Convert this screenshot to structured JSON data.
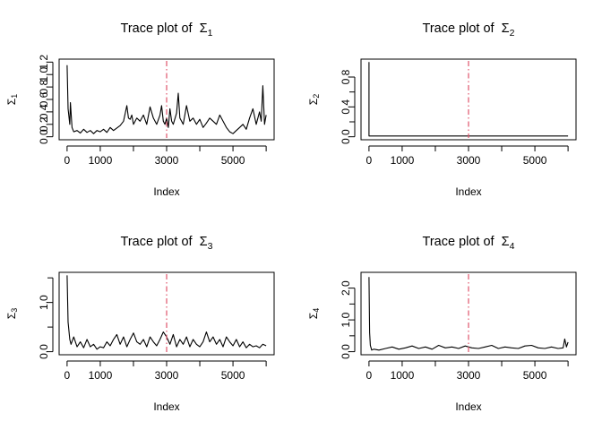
{
  "chart_data": [
    {
      "type": "line",
      "title_prefix": "Trace plot of",
      "title_symbol": "Σ",
      "title_subscript": "1",
      "xlabel": "Index",
      "ylabel_symbol": "Σ",
      "ylabel_subscript": "1",
      "xlim": [
        0,
        6000
      ],
      "ylim": [
        0,
        1.2
      ],
      "xticks": [
        0,
        1000,
        2000,
        3000,
        4000,
        5000,
        6000
      ],
      "xtick_labels": [
        "0",
        "1000",
        "",
        "3000",
        "",
        "5000",
        ""
      ],
      "yticks": [
        0,
        0.2,
        0.4,
        0.6,
        0.8,
        1.0,
        1.2
      ],
      "ytick_labels": [
        "0.0",
        "0.2",
        "0.4",
        "0.6",
        "0.8",
        "1.0",
        "1.2"
      ],
      "vline": 3000,
      "series": [
        {
          "x": [
            0,
            30,
            80,
            100,
            150,
            200,
            300,
            400,
            500,
            600,
            700,
            800,
            900,
            1000,
            1100,
            1200,
            1300,
            1400,
            1500,
            1600,
            1700,
            1800,
            1850,
            1900,
            1950,
            2000,
            2100,
            2200,
            2300,
            2400,
            2500,
            2600,
            2700,
            2800,
            2850,
            2900,
            2950,
            3000,
            3050,
            3100,
            3150,
            3200,
            3300,
            3350,
            3400,
            3500,
            3600,
            3700,
            3800,
            3900,
            4000,
            4100,
            4200,
            4300,
            4400,
            4500,
            4600,
            4700,
            4800,
            4900,
            5000,
            5100,
            5200,
            5300,
            5400,
            5500,
            5600,
            5700,
            5800,
            5850,
            5900,
            5950,
            6000
          ],
          "y": [
            1.15,
            0.45,
            0.2,
            0.55,
            0.15,
            0.08,
            0.1,
            0.06,
            0.12,
            0.07,
            0.1,
            0.05,
            0.1,
            0.08,
            0.12,
            0.07,
            0.15,
            0.1,
            0.14,
            0.18,
            0.25,
            0.5,
            0.3,
            0.28,
            0.35,
            0.2,
            0.3,
            0.25,
            0.35,
            0.2,
            0.48,
            0.3,
            0.2,
            0.35,
            0.5,
            0.25,
            0.2,
            0.3,
            0.15,
            0.45,
            0.25,
            0.2,
            0.38,
            0.7,
            0.3,
            0.2,
            0.5,
            0.25,
            0.3,
            0.2,
            0.28,
            0.15,
            0.22,
            0.3,
            0.25,
            0.2,
            0.35,
            0.25,
            0.15,
            0.08,
            0.05,
            0.1,
            0.15,
            0.2,
            0.12,
            0.3,
            0.45,
            0.2,
            0.4,
            0.25,
            0.82,
            0.2,
            0.35
          ]
        }
      ]
    },
    {
      "type": "line",
      "title_prefix": "Trace plot of",
      "title_symbol": "Σ",
      "title_subscript": "2",
      "xlabel": "Index",
      "ylabel_symbol": "Σ",
      "ylabel_subscript": "2",
      "xlim": [
        0,
        6000
      ],
      "ylim": [
        0,
        1.0
      ],
      "xticks": [
        0,
        1000,
        2000,
        3000,
        4000,
        5000,
        6000
      ],
      "xtick_labels": [
        "0",
        "1000",
        "",
        "3000",
        "",
        "5000",
        ""
      ],
      "yticks": [
        0,
        0.2,
        0.4,
        0.6,
        0.8
      ],
      "ytick_labels": [
        "0.0",
        "",
        "0.4",
        "",
        "0.8"
      ],
      "vline": 3000,
      "series": [
        {
          "x": [
            0,
            1,
            2,
            6000
          ],
          "y": [
            1.0,
            0.01,
            0.01,
            0.01
          ]
        }
      ]
    },
    {
      "type": "line",
      "title_prefix": "Trace plot of",
      "title_symbol": "Σ",
      "title_subscript": "3",
      "xlabel": "Index",
      "ylabel_symbol": "Σ",
      "ylabel_subscript": "3",
      "xlim": [
        0,
        6000
      ],
      "ylim": [
        0,
        1.55
      ],
      "xticks": [
        0,
        1000,
        2000,
        3000,
        4000,
        5000,
        6000
      ],
      "xtick_labels": [
        "0",
        "1000",
        "",
        "3000",
        "",
        "5000",
        ""
      ],
      "yticks": [
        0,
        0.5,
        1.0,
        1.5
      ],
      "ytick_labels": [
        "0.0",
        "",
        "1.0",
        ""
      ],
      "vline": 3000,
      "series": [
        {
          "x": [
            0,
            30,
            80,
            120,
            200,
            300,
            400,
            500,
            600,
            700,
            800,
            900,
            1000,
            1100,
            1200,
            1300,
            1400,
            1500,
            1600,
            1700,
            1800,
            1900,
            2000,
            2100,
            2200,
            2300,
            2400,
            2500,
            2600,
            2700,
            2800,
            2900,
            3000,
            3100,
            3200,
            3300,
            3400,
            3500,
            3600,
            3700,
            3800,
            3900,
            4000,
            4100,
            4200,
            4300,
            4400,
            4500,
            4600,
            4700,
            4800,
            4900,
            5000,
            5100,
            5200,
            5300,
            5400,
            5500,
            5600,
            5700,
            5800,
            5900,
            6000
          ],
          "y": [
            1.55,
            0.6,
            0.25,
            0.15,
            0.3,
            0.1,
            0.2,
            0.08,
            0.25,
            0.1,
            0.15,
            0.05,
            0.1,
            0.08,
            0.2,
            0.12,
            0.25,
            0.35,
            0.15,
            0.3,
            0.1,
            0.25,
            0.38,
            0.2,
            0.15,
            0.25,
            0.1,
            0.3,
            0.2,
            0.12,
            0.25,
            0.4,
            0.3,
            0.15,
            0.35,
            0.1,
            0.25,
            0.15,
            0.3,
            0.1,
            0.25,
            0.15,
            0.1,
            0.2,
            0.4,
            0.2,
            0.3,
            0.15,
            0.25,
            0.1,
            0.3,
            0.2,
            0.12,
            0.25,
            0.1,
            0.2,
            0.08,
            0.15,
            0.1,
            0.12,
            0.08,
            0.15,
            0.12
          ]
        }
      ]
    },
    {
      "type": "line",
      "title_prefix": "Trace plot of",
      "title_symbol": "Σ",
      "title_subscript": "4",
      "xlabel": "Index",
      "ylabel_symbol": "Σ",
      "ylabel_subscript": "4",
      "xlim": [
        0,
        6000
      ],
      "ylim": [
        0,
        2.4
      ],
      "xticks": [
        0,
        1000,
        2000,
        3000,
        4000,
        5000,
        6000
      ],
      "xtick_labels": [
        "0",
        "1000",
        "",
        "3000",
        "",
        "5000",
        ""
      ],
      "yticks": [
        0,
        0.5,
        1.0,
        1.5,
        2.0
      ],
      "ytick_labels": [
        "0.0",
        "",
        "1.0",
        "",
        "2.0"
      ],
      "vline": 3000,
      "series": [
        {
          "x": [
            0,
            20,
            40,
            80,
            150,
            300,
            500,
            700,
            900,
            1100,
            1300,
            1500,
            1700,
            1900,
            2100,
            2300,
            2500,
            2700,
            2900,
            3100,
            3300,
            3500,
            3700,
            3900,
            4100,
            4300,
            4500,
            4700,
            4900,
            5100,
            5300,
            5500,
            5700,
            5850,
            5900,
            5950,
            6000
          ],
          "y": [
            2.35,
            0.6,
            0.2,
            0.05,
            0.08,
            0.05,
            0.1,
            0.15,
            0.08,
            0.12,
            0.18,
            0.1,
            0.15,
            0.08,
            0.2,
            0.12,
            0.15,
            0.1,
            0.18,
            0.12,
            0.1,
            0.15,
            0.2,
            0.1,
            0.15,
            0.12,
            0.1,
            0.18,
            0.2,
            0.12,
            0.1,
            0.15,
            0.1,
            0.12,
            0.4,
            0.15,
            0.3
          ]
        }
      ]
    }
  ],
  "colors": {
    "trace": "#000000",
    "vline": "#DF536B",
    "axis": "#000000"
  }
}
